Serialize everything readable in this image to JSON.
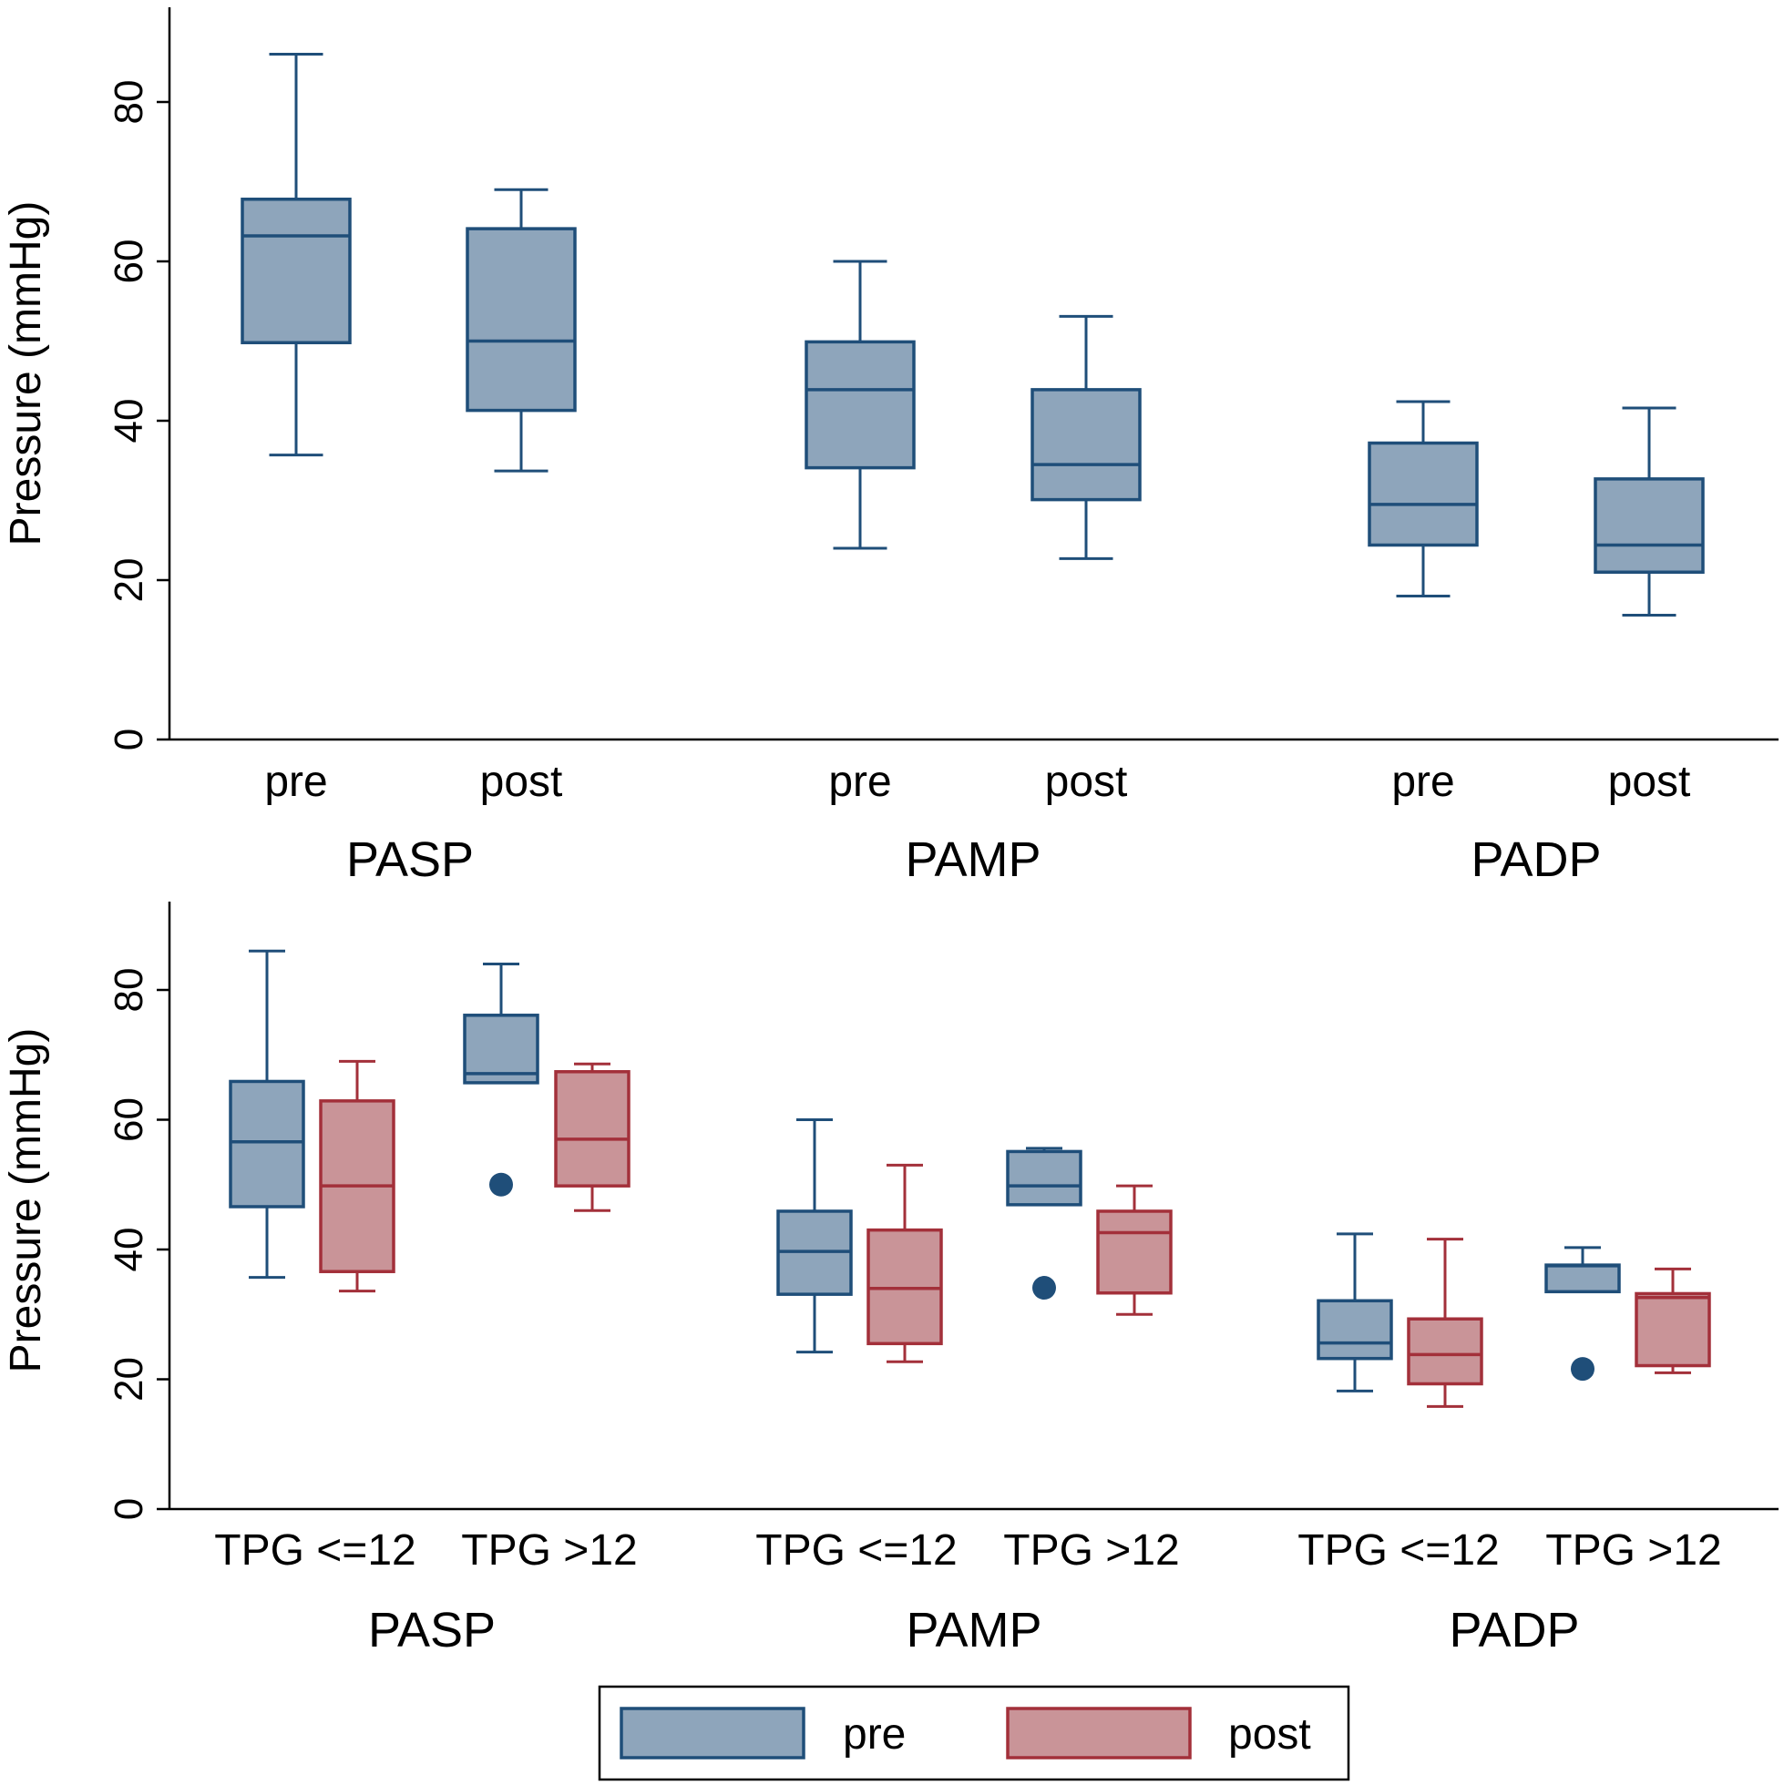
{
  "colors": {
    "pre_fill": "#8ea5bb",
    "pre_stroke": "#1f4e79",
    "post_fill": "#c99498",
    "post_stroke": "#a3303a",
    "axis": "#000000"
  },
  "legend": {
    "items": [
      {
        "label": "pre",
        "series": "pre"
      },
      {
        "label": "post",
        "series": "post"
      }
    ],
    "placement": "bottom"
  },
  "chart_data": [
    {
      "type": "box",
      "ylabel": "Pressure (mmHg)",
      "ylim": [
        0,
        92
      ],
      "yticks": [
        "0",
        "20",
        "40",
        "60",
        "80"
      ],
      "grid": false,
      "groups": [
        "PASP",
        "PAMP",
        "PADP"
      ],
      "categories": [
        "pre",
        "post",
        "pre",
        "post",
        "pre",
        "post"
      ],
      "boxes": [
        {
          "group": "PASP",
          "category": "pre",
          "series": "pre",
          "min": 35.7,
          "q1": 49.8,
          "median": 63.2,
          "q3": 67.8,
          "max": 86.0
        },
        {
          "group": "PASP",
          "category": "post",
          "series": "pre",
          "min": 33.7,
          "q1": 41.3,
          "median": 50.0,
          "q3": 64.1,
          "max": 69.0
        },
        {
          "group": "PAMP",
          "category": "pre",
          "series": "pre",
          "min": 24.0,
          "q1": 34.1,
          "median": 43.9,
          "q3": 49.9,
          "max": 60.0
        },
        {
          "group": "PAMP",
          "category": "post",
          "series": "pre",
          "min": 22.7,
          "q1": 30.1,
          "median": 34.5,
          "q3": 43.9,
          "max": 53.1
        },
        {
          "group": "PADP",
          "category": "pre",
          "series": "pre",
          "min": 18.0,
          "q1": 24.4,
          "median": 29.5,
          "q3": 37.2,
          "max": 42.4
        },
        {
          "group": "PADP",
          "category": "post",
          "series": "pre",
          "min": 15.6,
          "q1": 21.0,
          "median": 24.4,
          "q3": 32.7,
          "max": 41.6
        }
      ]
    },
    {
      "type": "box",
      "ylabel": "Pressure (mmHg)",
      "ylim": [
        0,
        94
      ],
      "yticks": [
        "0",
        "20",
        "40",
        "60",
        "80"
      ],
      "grid": false,
      "groups": [
        "PASP",
        "PAMP",
        "PADP"
      ],
      "categories": [
        "TPG <=12",
        "TPG >12",
        "TPG <=12",
        "TPG >12",
        "TPG <=12",
        "TPG >12"
      ],
      "series": [
        "pre",
        "post"
      ],
      "boxes": [
        {
          "group": "PASP",
          "category": "TPG <=12",
          "series": "pre",
          "min": 35.7,
          "q1": 46.6,
          "median": 56.6,
          "q3": 65.9,
          "max": 86.0
        },
        {
          "group": "PASP",
          "category": "TPG <=12",
          "series": "post",
          "min": 33.6,
          "q1": 36.6,
          "median": 49.8,
          "q3": 62.9,
          "max": 69.0
        },
        {
          "group": "PASP",
          "category": "TPG >12",
          "series": "pre",
          "min": 65.7,
          "q1": 65.7,
          "median": 67.1,
          "q3": 76.1,
          "max": 84.0,
          "outliers": [
            50.0
          ]
        },
        {
          "group": "PASP",
          "category": "TPG >12",
          "series": "post",
          "min": 46.0,
          "q1": 49.8,
          "median": 57.0,
          "q3": 67.4,
          "max": 68.6
        },
        {
          "group": "PAMP",
          "category": "TPG <=12",
          "series": "pre",
          "min": 24.2,
          "q1": 33.1,
          "median": 39.7,
          "q3": 45.9,
          "max": 60.0
        },
        {
          "group": "PAMP",
          "category": "TPG <=12",
          "series": "post",
          "min": 22.7,
          "q1": 25.5,
          "median": 34.0,
          "q3": 43.0,
          "max": 53.0
        },
        {
          "group": "PAMP",
          "category": "TPG >12",
          "series": "pre",
          "min": 46.9,
          "q1": 46.9,
          "median": 49.8,
          "q3": 55.1,
          "max": 55.6,
          "outliers": [
            34.1
          ]
        },
        {
          "group": "PAMP",
          "category": "TPG >12",
          "series": "post",
          "min": 30.0,
          "q1": 33.3,
          "median": 42.6,
          "q3": 45.9,
          "max": 49.8
        },
        {
          "group": "PADP",
          "category": "TPG <=12",
          "series": "pre",
          "min": 18.2,
          "q1": 23.2,
          "median": 25.6,
          "q3": 32.1,
          "max": 42.4
        },
        {
          "group": "PADP",
          "category": "TPG <=12",
          "series": "post",
          "min": 15.8,
          "q1": 19.3,
          "median": 23.8,
          "q3": 29.3,
          "max": 41.6
        },
        {
          "group": "PADP",
          "category": "TPG >12",
          "series": "pre",
          "min": 33.5,
          "q1": 33.5,
          "median": 37.5,
          "q3": 37.6,
          "max": 40.3,
          "outliers": [
            21.6
          ]
        },
        {
          "group": "PADP",
          "category": "TPG >12",
          "series": "post",
          "min": 21.0,
          "q1": 22.1,
          "median": 32.6,
          "q3": 33.2,
          "max": 37.0
        }
      ]
    }
  ]
}
